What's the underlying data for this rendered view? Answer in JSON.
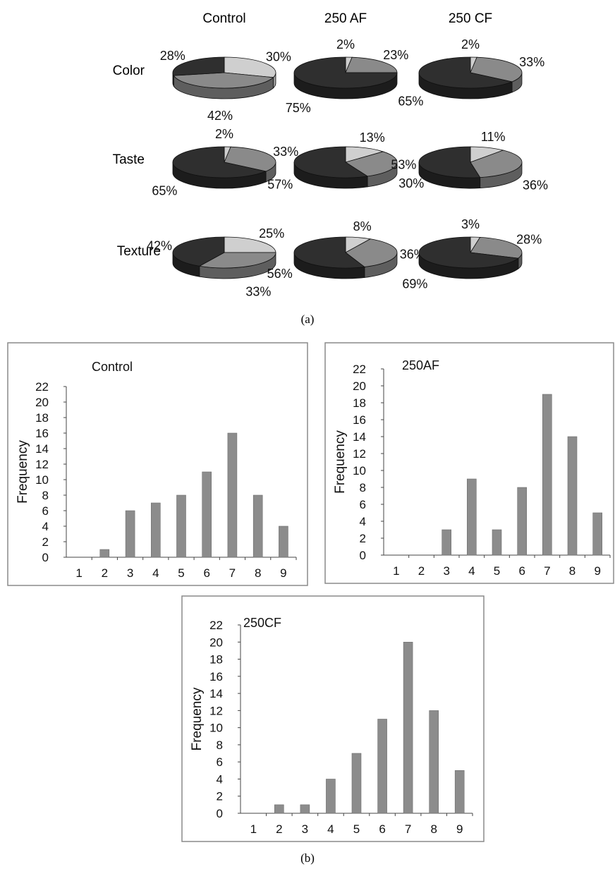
{
  "colors": {
    "dark": "#2f2f2f",
    "dark_side": "#1c1c1c",
    "mid": "#8a8a8a",
    "mid_side": "#5e5e5e",
    "light": "#cfcfcf",
    "light_side": "#9c9c9c",
    "bar": "#8c8c8c",
    "frame": "#8a8a8a"
  },
  "panel_a": {
    "caption": "(a)",
    "columns": [
      "Control",
      "250 AF",
      "250 CF"
    ],
    "rows": [
      "Color",
      "Taste",
      "Texture"
    ]
  },
  "panel_b": {
    "caption": "(b)"
  },
  "chart_data": [
    {
      "type": "pie",
      "row": "Color",
      "column": "Control",
      "slices": [
        {
          "shade": "light",
          "value": 30,
          "label": "30%"
        },
        {
          "shade": "mid",
          "value": 42,
          "label": "42%"
        },
        {
          "shade": "dark",
          "value": 28,
          "label": "28%"
        }
      ]
    },
    {
      "type": "pie",
      "row": "Color",
      "column": "250 AF",
      "slices": [
        {
          "shade": "light",
          "value": 2,
          "label": "2%"
        },
        {
          "shade": "mid",
          "value": 23,
          "label": "23%"
        },
        {
          "shade": "dark",
          "value": 75,
          "label": "75%"
        }
      ]
    },
    {
      "type": "pie",
      "row": "Color",
      "column": "250 CF",
      "slices": [
        {
          "shade": "light",
          "value": 2,
          "label": "2%"
        },
        {
          "shade": "mid",
          "value": 33,
          "label": "33%"
        },
        {
          "shade": "dark",
          "value": 65,
          "label": "65%"
        }
      ]
    },
    {
      "type": "pie",
      "row": "Taste",
      "column": "Control",
      "slices": [
        {
          "shade": "light",
          "value": 2,
          "label": "2%"
        },
        {
          "shade": "mid",
          "value": 33,
          "label": "33%"
        },
        {
          "shade": "dark",
          "value": 65,
          "label": "65%"
        }
      ]
    },
    {
      "type": "pie",
      "row": "Taste",
      "column": "250 AF",
      "slices": [
        {
          "shade": "light",
          "value": 13,
          "label": "13%"
        },
        {
          "shade": "mid",
          "value": 30,
          "label": "30%"
        },
        {
          "shade": "dark",
          "value": 57,
          "label": "57%"
        }
      ]
    },
    {
      "type": "pie",
      "row": "Taste",
      "column": "250 CF",
      "slices": [
        {
          "shade": "light",
          "value": 11,
          "label": "11%"
        },
        {
          "shade": "mid",
          "value": 36,
          "label": "36%"
        },
        {
          "shade": "dark",
          "value": 53,
          "label": "53%"
        }
      ]
    },
    {
      "type": "pie",
      "row": "Texture",
      "column": "Control",
      "slices": [
        {
          "shade": "light",
          "value": 25,
          "label": "25%"
        },
        {
          "shade": "mid",
          "value": 33,
          "label": "33%"
        },
        {
          "shade": "dark",
          "value": 42,
          "label": "42%"
        }
      ]
    },
    {
      "type": "pie",
      "row": "Texture",
      "column": "250 AF",
      "slices": [
        {
          "shade": "light",
          "value": 8,
          "label": "8%"
        },
        {
          "shade": "mid",
          "value": 36,
          "label": "36%"
        },
        {
          "shade": "dark",
          "value": 56,
          "label": "56%"
        }
      ]
    },
    {
      "type": "pie",
      "row": "Texture",
      "column": "250 CF",
      "slices": [
        {
          "shade": "light",
          "value": 3,
          "label": "3%"
        },
        {
          "shade": "mid",
          "value": 28,
          "label": "28%"
        },
        {
          "shade": "dark",
          "value": 69,
          "label": "69%"
        }
      ]
    },
    {
      "type": "bar",
      "title": "Control",
      "ylabel": "Frequency",
      "categories": [
        "1",
        "2",
        "3",
        "4",
        "5",
        "6",
        "7",
        "8",
        "9"
      ],
      "values": [
        0,
        1,
        6,
        7,
        8,
        11,
        16,
        8,
        4
      ],
      "ylim": [
        0,
        22
      ],
      "yticks": [
        "0",
        "2",
        "4",
        "6",
        "8",
        "10",
        "12",
        "14",
        "16",
        "18",
        "20",
        "22"
      ]
    },
    {
      "type": "bar",
      "title": "250AF",
      "ylabel": "Frequency",
      "categories": [
        "1",
        "2",
        "3",
        "4",
        "5",
        "6",
        "7",
        "8",
        "9"
      ],
      "values": [
        0,
        0,
        3,
        9,
        3,
        8,
        19,
        14,
        5
      ],
      "ylim": [
        0,
        22
      ],
      "yticks": [
        "0",
        "2",
        "4",
        "6",
        "8",
        "10",
        "12",
        "14",
        "16",
        "18",
        "20",
        "22"
      ]
    },
    {
      "type": "bar",
      "title": "250CF",
      "ylabel": "Frequency",
      "categories": [
        "1",
        "2",
        "3",
        "4",
        "5",
        "6",
        "7",
        "8",
        "9"
      ],
      "values": [
        0,
        1,
        1,
        4,
        7,
        11,
        20,
        12,
        5
      ],
      "ylim": [
        0,
        22
      ],
      "yticks": [
        "0",
        "2",
        "4",
        "6",
        "8",
        "10",
        "12",
        "14",
        "16",
        "18",
        "20",
        "22"
      ]
    }
  ]
}
